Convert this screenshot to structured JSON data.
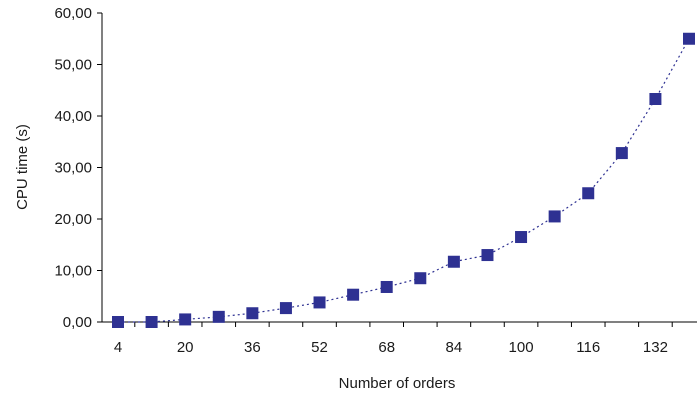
{
  "chart_data": {
    "type": "line",
    "title": "",
    "xlabel": "Number of orders",
    "ylabel": "CPU time (s)",
    "x_ticks": [
      "4",
      "20",
      "36",
      "52",
      "68",
      "84",
      "100",
      "116",
      "132"
    ],
    "y_ticks": [
      "0,00",
      "10,00",
      "20,00",
      "30,00",
      "40,00",
      "50,00",
      "60,00"
    ],
    "xlim": [
      4,
      140
    ],
    "ylim": [
      0,
      60
    ],
    "grid": false,
    "legend": "none",
    "marker": "square",
    "line_style": "dotted",
    "series_color": "#2e3192",
    "series": [
      {
        "x": [
          4,
          12,
          20,
          28,
          36,
          44,
          52,
          60,
          68,
          76,
          84,
          92,
          100,
          108,
          116,
          124,
          132,
          140
        ],
        "values": [
          0.0,
          0.0,
          0.5,
          1.0,
          1.7,
          2.7,
          3.8,
          5.3,
          6.8,
          8.5,
          11.7,
          13.0,
          16.5,
          20.5,
          25.0,
          32.8,
          43.3,
          55.0
        ]
      }
    ]
  }
}
